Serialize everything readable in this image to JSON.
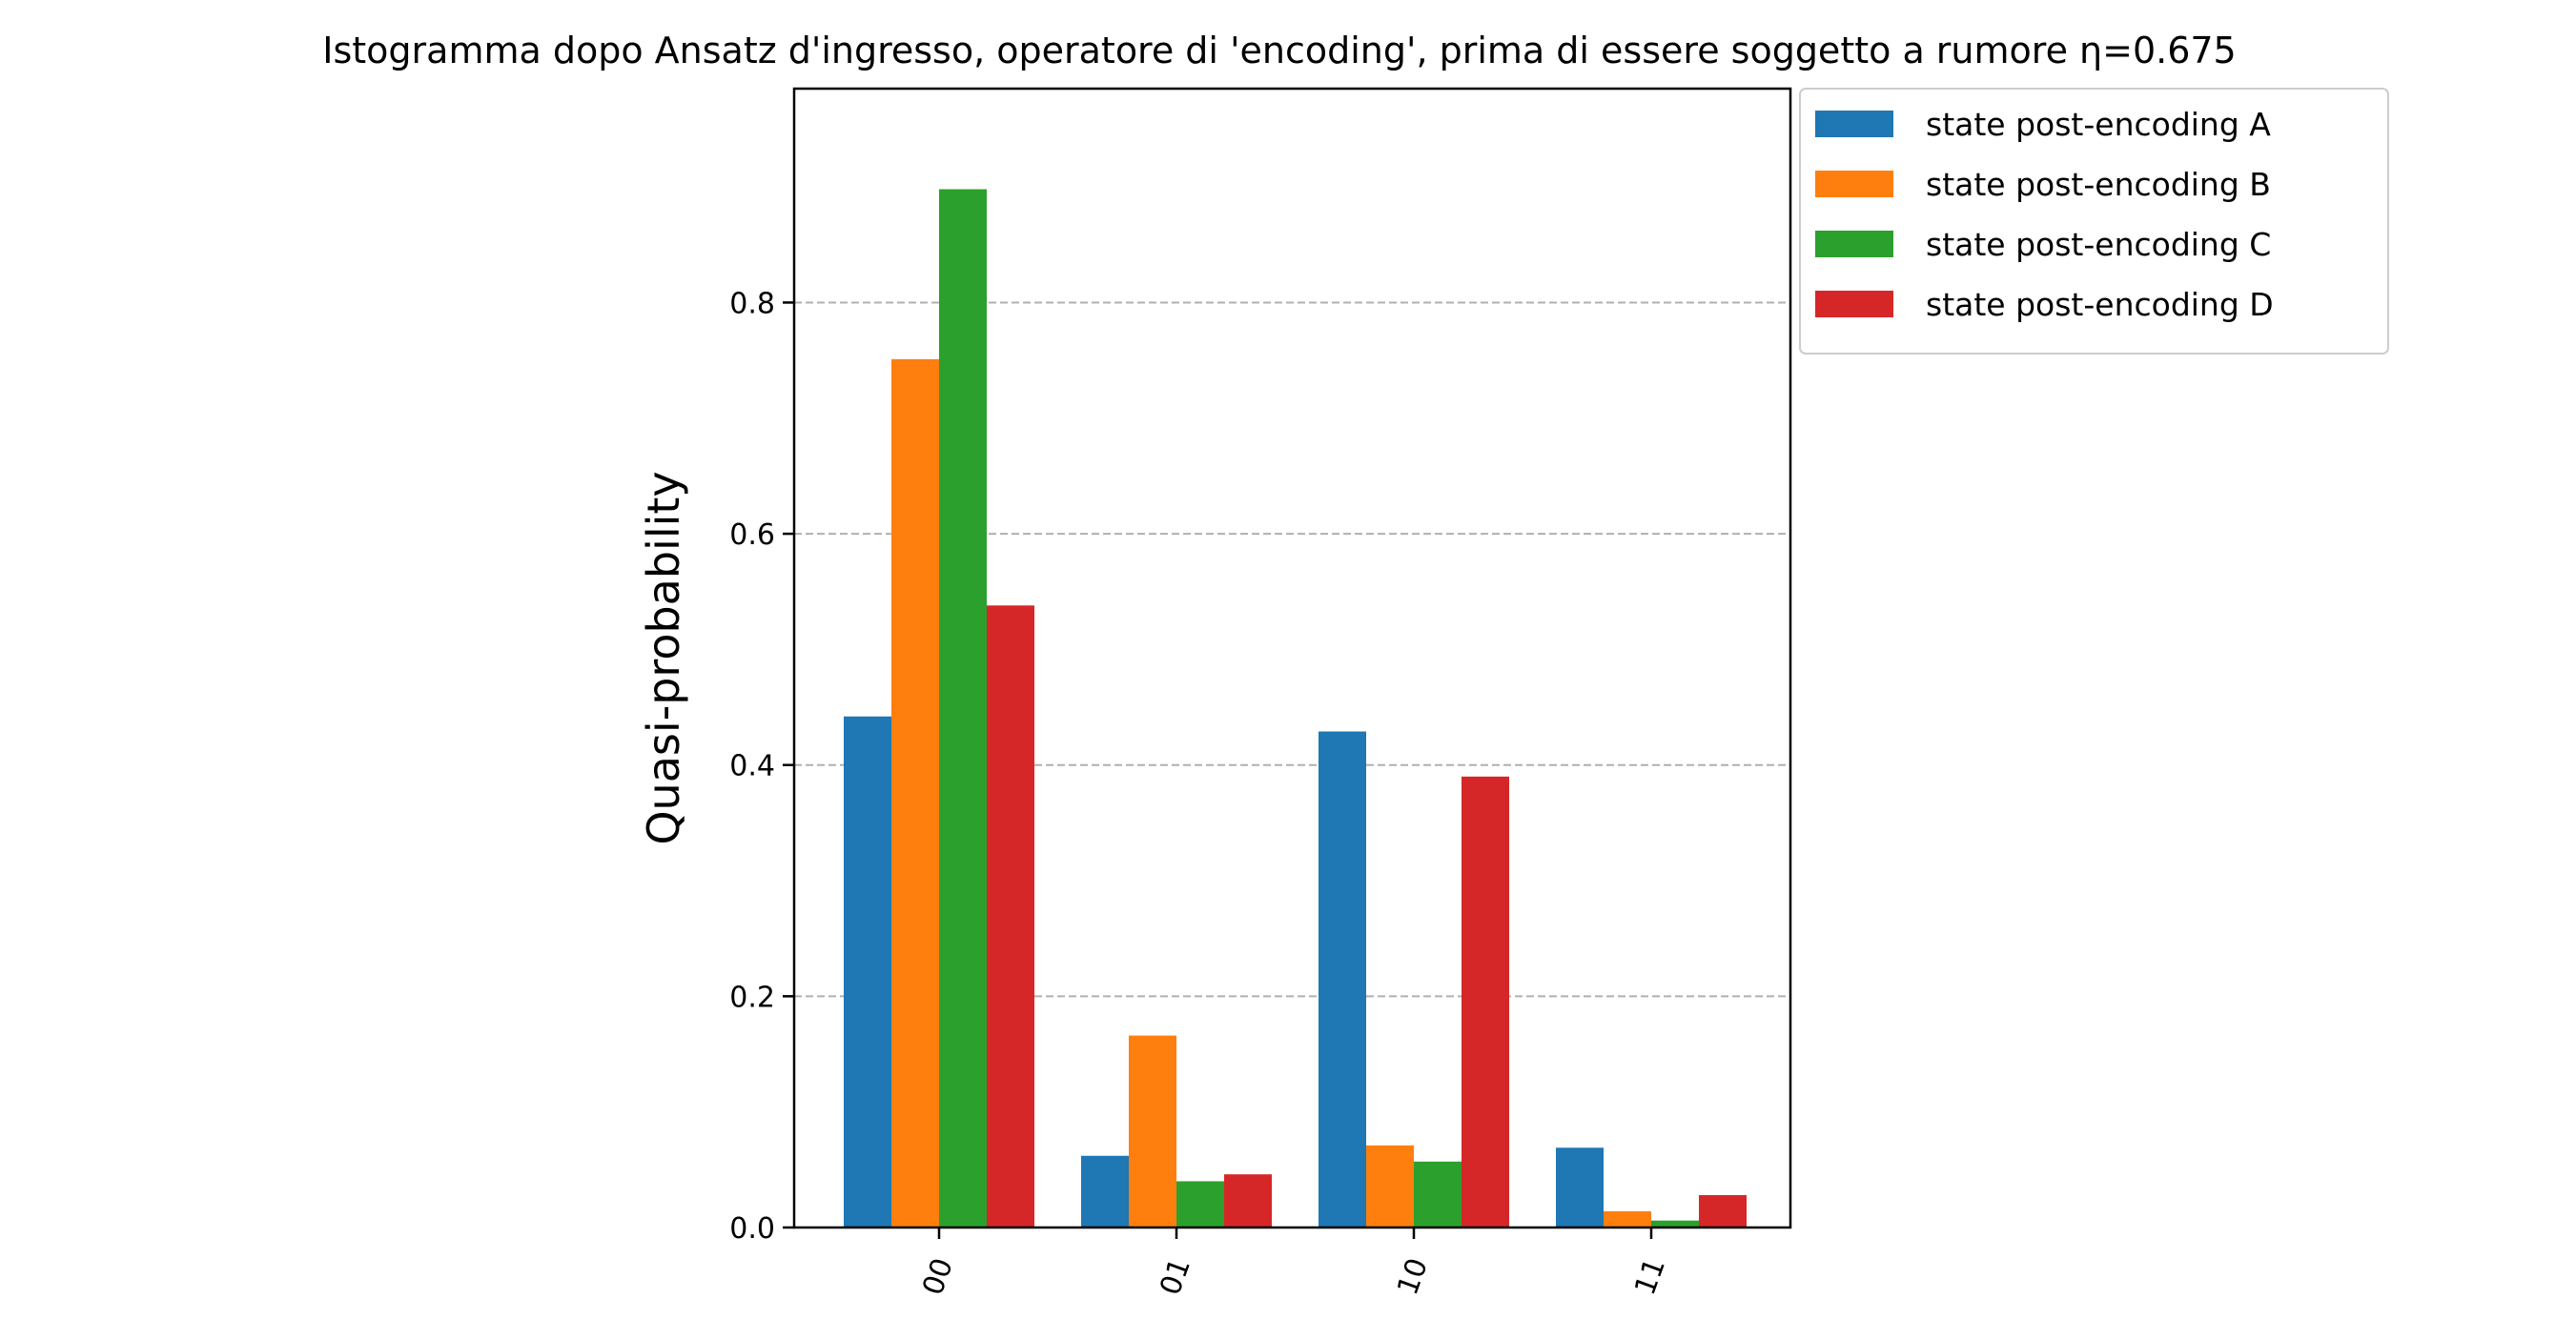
{
  "chart_data": {
    "type": "bar",
    "title": "Istogramma dopo Ansatz d'ingresso, operatore di 'encoding', prima di essere soggetto a rumore η=0.675",
    "xlabel": "",
    "ylabel": "Quasi-probability",
    "categories": [
      "00",
      "01",
      "10",
      "11"
    ],
    "ylim": [
      0,
      0.985
    ],
    "yticks": [
      0.0,
      0.2,
      0.4,
      0.6,
      0.8
    ],
    "ytick_labels": [
      "0.0",
      "0.2",
      "0.4",
      "0.6",
      "0.8"
    ],
    "grid": "y-dashed",
    "legend_position": "outside-top-right",
    "series": [
      {
        "name": "state post-encoding A",
        "color": "#1f77b4",
        "values": [
          0.442,
          0.062,
          0.429,
          0.069
        ]
      },
      {
        "name": "state post-encoding B",
        "color": "#ff7f0e",
        "values": [
          0.751,
          0.166,
          0.071,
          0.014
        ]
      },
      {
        "name": "state post-encoding C",
        "color": "#2ca02c",
        "values": [
          0.898,
          0.04,
          0.057,
          0.006
        ]
      },
      {
        "name": "state post-encoding D",
        "color": "#d62728",
        "values": [
          0.538,
          0.046,
          0.39,
          0.028
        ]
      }
    ]
  }
}
